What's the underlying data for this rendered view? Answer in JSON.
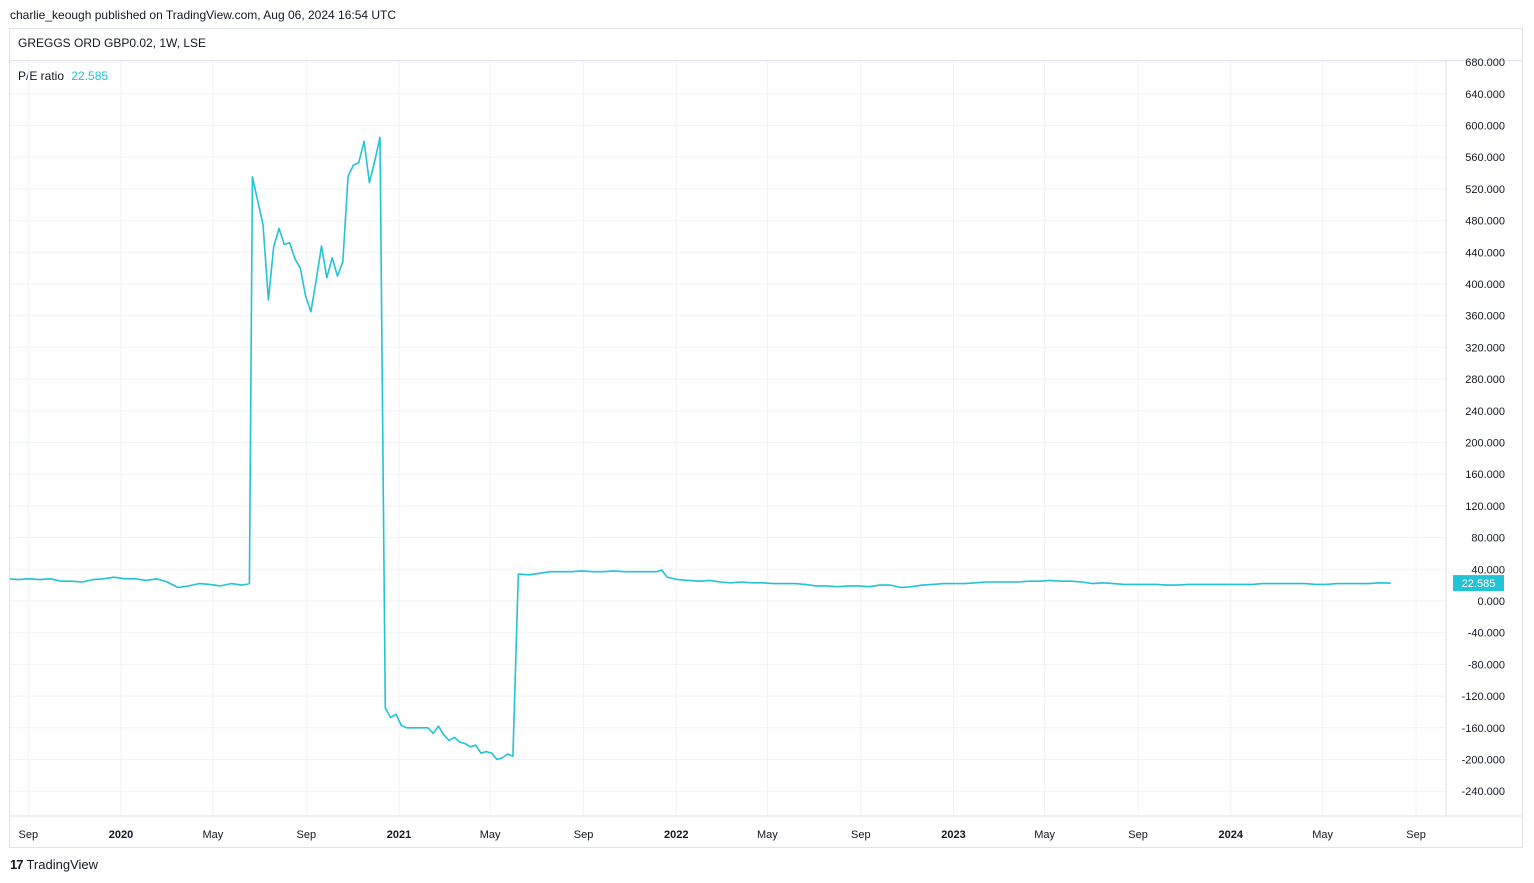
{
  "header": {
    "published": "charlie_keough published on TradingView.com, Aug 06, 2024 16:54 UTC",
    "symbol": "GREGGS ORD GBP0.02, 1W, LSE"
  },
  "legend": {
    "label": "P/E ratio",
    "value": "22.585"
  },
  "footer": {
    "logo_mark": "17",
    "brand": "TradingView"
  },
  "colors": {
    "line": "#22c3d4",
    "grid": "#f0f3fa",
    "axis_text": "#131722",
    "badge": "#22c3d4"
  },
  "chart_data": {
    "type": "line",
    "title": "P/E ratio",
    "ylim": [
      -264,
      680
    ],
    "grid": true,
    "y_ticks": [
      "680.000",
      "640.000",
      "600.000",
      "560.000",
      "520.000",
      "480.000",
      "440.000",
      "400.000",
      "360.000",
      "320.000",
      "280.000",
      "240.000",
      "200.000",
      "160.000",
      "120.000",
      "80.000",
      "40.000",
      "0.000",
      "-40.000",
      "-80.000",
      "-120.000",
      "-160.000",
      "-200.000",
      "-240.000"
    ],
    "x_ticks": [
      {
        "date": "2019-09-01",
        "label": "Sep",
        "bold": false
      },
      {
        "date": "2020-01-01",
        "label": "2020",
        "bold": true
      },
      {
        "date": "2020-05-01",
        "label": "May",
        "bold": false
      },
      {
        "date": "2020-09-01",
        "label": "Sep",
        "bold": false
      },
      {
        "date": "2021-01-01",
        "label": "2021",
        "bold": true
      },
      {
        "date": "2021-05-01",
        "label": "May",
        "bold": false
      },
      {
        "date": "2021-09-01",
        "label": "Sep",
        "bold": false
      },
      {
        "date": "2022-01-01",
        "label": "2022",
        "bold": true
      },
      {
        "date": "2022-05-01",
        "label": "May",
        "bold": false
      },
      {
        "date": "2022-09-01",
        "label": "Sep",
        "bold": false
      },
      {
        "date": "2023-01-01",
        "label": "2023",
        "bold": true
      },
      {
        "date": "2023-05-01",
        "label": "May",
        "bold": false
      },
      {
        "date": "2023-09-01",
        "label": "Sep",
        "bold": false
      },
      {
        "date": "2024-01-01",
        "label": "2024",
        "bold": true
      },
      {
        "date": "2024-05-01",
        "label": "May",
        "bold": false
      },
      {
        "date": "2024-09-01",
        "label": "Sep",
        "bold": false
      }
    ],
    "last_value": "22.585",
    "series": [
      {
        "color": "#22c3d4",
        "points": [
          [
            "2019-08-05",
            28
          ],
          [
            "2019-08-19",
            27
          ],
          [
            "2019-09-02",
            28
          ],
          [
            "2019-09-16",
            27
          ],
          [
            "2019-09-30",
            28
          ],
          [
            "2019-10-14",
            25
          ],
          [
            "2019-10-28",
            25
          ],
          [
            "2019-11-11",
            24
          ],
          [
            "2019-11-25",
            27
          ],
          [
            "2019-12-09",
            28
          ],
          [
            "2019-12-23",
            30
          ],
          [
            "2020-01-06",
            28
          ],
          [
            "2020-01-20",
            28
          ],
          [
            "2020-02-03",
            26
          ],
          [
            "2020-02-17",
            28
          ],
          [
            "2020-03-02",
            24
          ],
          [
            "2020-03-16",
            17
          ],
          [
            "2020-03-30",
            19
          ],
          [
            "2020-04-13",
            22
          ],
          [
            "2020-04-27",
            21
          ],
          [
            "2020-05-11",
            19
          ],
          [
            "2020-05-25",
            22
          ],
          [
            "2020-06-08",
            20
          ],
          [
            "2020-06-18",
            22
          ],
          [
            "2020-06-22",
            535
          ],
          [
            "2020-07-06",
            475
          ],
          [
            "2020-07-13",
            380
          ],
          [
            "2020-07-20",
            447
          ],
          [
            "2020-07-27",
            470
          ],
          [
            "2020-08-03",
            450
          ],
          [
            "2020-08-10",
            452
          ],
          [
            "2020-08-17",
            432
          ],
          [
            "2020-08-24",
            420
          ],
          [
            "2020-08-31",
            385
          ],
          [
            "2020-09-07",
            365
          ],
          [
            "2020-09-14",
            405
          ],
          [
            "2020-09-21",
            448
          ],
          [
            "2020-09-28",
            408
          ],
          [
            "2020-10-05",
            433
          ],
          [
            "2020-10-12",
            410
          ],
          [
            "2020-10-19",
            428
          ],
          [
            "2020-10-26",
            536
          ],
          [
            "2020-11-02",
            550
          ],
          [
            "2020-11-09",
            553
          ],
          [
            "2020-11-16",
            580
          ],
          [
            "2020-11-23",
            528
          ],
          [
            "2020-11-30",
            555
          ],
          [
            "2020-12-07",
            585
          ],
          [
            "2020-12-14",
            -135
          ],
          [
            "2020-12-21",
            -147
          ],
          [
            "2020-12-28",
            -143
          ],
          [
            "2021-01-04",
            -157
          ],
          [
            "2021-01-11",
            -160
          ],
          [
            "2021-01-25",
            -160
          ],
          [
            "2021-02-08",
            -160
          ],
          [
            "2021-02-15",
            -167
          ],
          [
            "2021-02-22",
            -158
          ],
          [
            "2021-03-01",
            -169
          ],
          [
            "2021-03-08",
            -176
          ],
          [
            "2021-03-15",
            -172
          ],
          [
            "2021-03-22",
            -178
          ],
          [
            "2021-03-29",
            -180
          ],
          [
            "2021-04-05",
            -184
          ],
          [
            "2021-04-12",
            -182
          ],
          [
            "2021-04-19",
            -192
          ],
          [
            "2021-04-26",
            -190
          ],
          [
            "2021-05-03",
            -192
          ],
          [
            "2021-05-10",
            -200
          ],
          [
            "2021-05-17",
            -198
          ],
          [
            "2021-05-24",
            -193
          ],
          [
            "2021-05-31",
            -196
          ],
          [
            "2021-06-07",
            34
          ],
          [
            "2021-06-21",
            33
          ],
          [
            "2021-07-05",
            35
          ],
          [
            "2021-07-19",
            37
          ],
          [
            "2021-08-02",
            37
          ],
          [
            "2021-08-16",
            37
          ],
          [
            "2021-08-30",
            38
          ],
          [
            "2021-09-13",
            37
          ],
          [
            "2021-09-27",
            37
          ],
          [
            "2021-10-11",
            38
          ],
          [
            "2021-10-25",
            37
          ],
          [
            "2021-11-08",
            37
          ],
          [
            "2021-11-22",
            37
          ],
          [
            "2021-12-06",
            37
          ],
          [
            "2021-12-13",
            39
          ],
          [
            "2021-12-20",
            30
          ],
          [
            "2022-01-03",
            27
          ],
          [
            "2022-01-17",
            26
          ],
          [
            "2022-01-31",
            25
          ],
          [
            "2022-02-14",
            26
          ],
          [
            "2022-02-28",
            24
          ],
          [
            "2022-03-14",
            23
          ],
          [
            "2022-03-28",
            24
          ],
          [
            "2022-04-11",
            23
          ],
          [
            "2022-04-25",
            23
          ],
          [
            "2022-05-09",
            22
          ],
          [
            "2022-05-23",
            22
          ],
          [
            "2022-06-06",
            22
          ],
          [
            "2022-06-20",
            21
          ],
          [
            "2022-07-04",
            19
          ],
          [
            "2022-07-18",
            19
          ],
          [
            "2022-08-01",
            18
          ],
          [
            "2022-08-15",
            19
          ],
          [
            "2022-08-29",
            19
          ],
          [
            "2022-09-12",
            18
          ],
          [
            "2022-09-26",
            20
          ],
          [
            "2022-10-10",
            20
          ],
          [
            "2022-10-24",
            17
          ],
          [
            "2022-11-07",
            18
          ],
          [
            "2022-11-21",
            20
          ],
          [
            "2022-12-05",
            21
          ],
          [
            "2022-12-19",
            22
          ],
          [
            "2023-01-02",
            22
          ],
          [
            "2023-01-16",
            22
          ],
          [
            "2023-01-30",
            23
          ],
          [
            "2023-02-13",
            24
          ],
          [
            "2023-02-27",
            24
          ],
          [
            "2023-03-13",
            24
          ],
          [
            "2023-03-27",
            24
          ],
          [
            "2023-04-10",
            25
          ],
          [
            "2023-04-24",
            25
          ],
          [
            "2023-05-08",
            26
          ],
          [
            "2023-05-22",
            25
          ],
          [
            "2023-06-05",
            25
          ],
          [
            "2023-06-19",
            24
          ],
          [
            "2023-07-03",
            22
          ],
          [
            "2023-07-17",
            23
          ],
          [
            "2023-07-31",
            22
          ],
          [
            "2023-08-14",
            21
          ],
          [
            "2023-08-28",
            21
          ],
          [
            "2023-09-11",
            21
          ],
          [
            "2023-09-25",
            21
          ],
          [
            "2023-10-09",
            20
          ],
          [
            "2023-10-23",
            20
          ],
          [
            "2023-11-06",
            21
          ],
          [
            "2023-11-20",
            21
          ],
          [
            "2023-12-04",
            21
          ],
          [
            "2023-12-18",
            21
          ],
          [
            "2024-01-01",
            21
          ],
          [
            "2024-01-15",
            21
          ],
          [
            "2024-01-29",
            21
          ],
          [
            "2024-02-12",
            22
          ],
          [
            "2024-02-26",
            22
          ],
          [
            "2024-03-11",
            22
          ],
          [
            "2024-03-25",
            22
          ],
          [
            "2024-04-08",
            22
          ],
          [
            "2024-04-22",
            21
          ],
          [
            "2024-05-06",
            21
          ],
          [
            "2024-05-20",
            22
          ],
          [
            "2024-06-03",
            22
          ],
          [
            "2024-06-17",
            22
          ],
          [
            "2024-07-01",
            22
          ],
          [
            "2024-07-15",
            23
          ],
          [
            "2024-07-29",
            22.585
          ]
        ]
      }
    ]
  }
}
